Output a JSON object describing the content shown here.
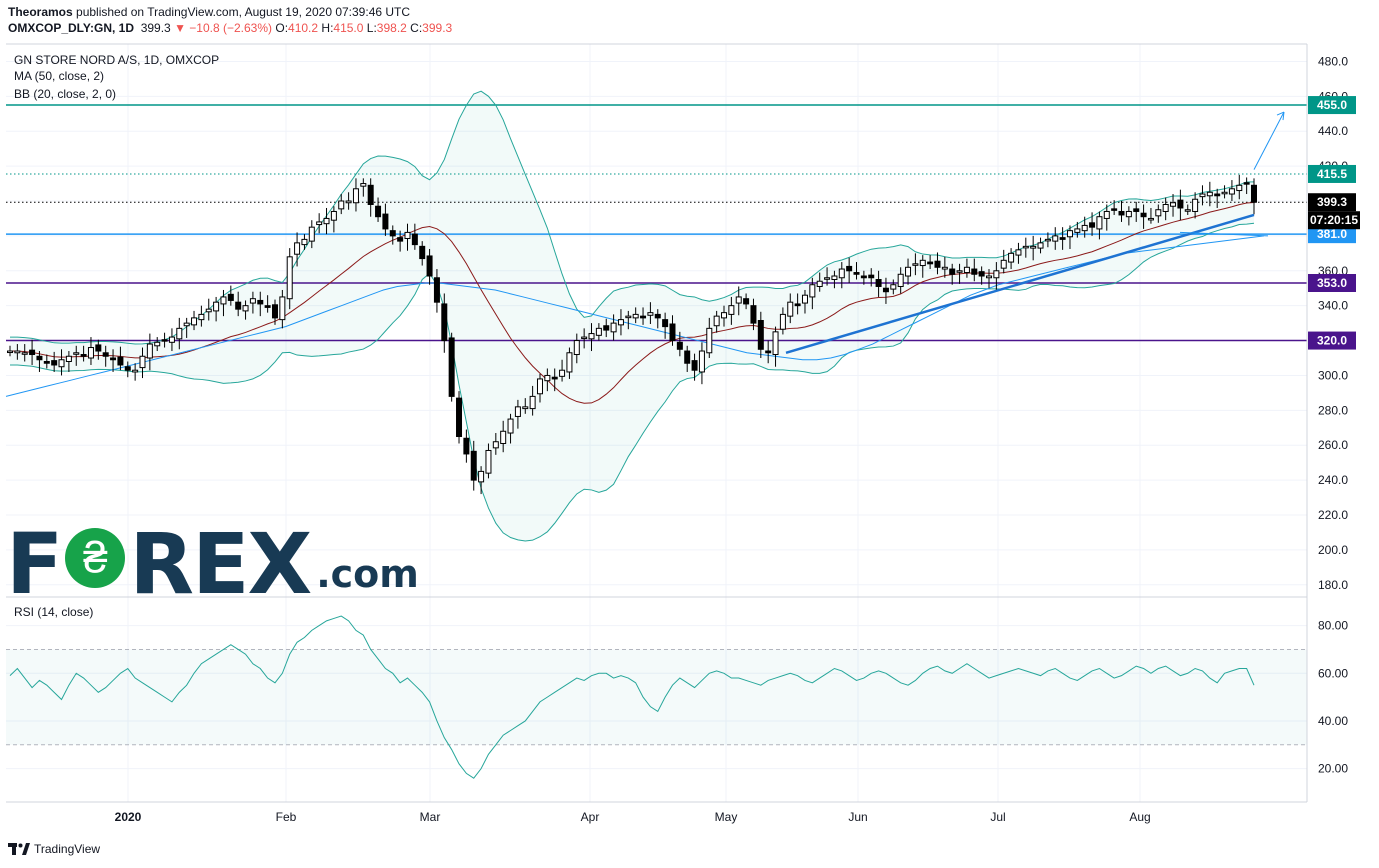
{
  "header": {
    "publisher": "Theoramos",
    "published_text": "published on TradingView.com, August 19, 2020 07:39:46 UTC",
    "symbol": "OMXCOP_DLY:GN, 1D",
    "last": "399.3",
    "change": "▼ −10.8 (−2.63%)",
    "o_label": "O:",
    "o": "410.2",
    "h_label": "H:",
    "h": "415.0",
    "l_label": "L:",
    "l": "398.2",
    "c_label": "C:",
    "c": "399.3"
  },
  "indicators": {
    "title": "GN STORE NORD A/S, 1D, OMXCOP",
    "ma": "MA (50, close, 2)",
    "bb": "BB (20, close, 2, 0)",
    "rsi": "RSI (14, close)"
  },
  "logo": {
    "pre": "F",
    "o": "₴",
    "post": "REX",
    "suffix": ".com"
  },
  "footer": {
    "brand": "TradingView"
  },
  "colors": {
    "up": "#ffffff",
    "down": "#000000",
    "bb": "#26a69a",
    "ma50": "#2196f3",
    "bb_basis": "#8b1a1a",
    "green_level": "#009688",
    "blue_level": "#2196f3",
    "purple_level": "#4a148c",
    "rsi": "#26a69a"
  },
  "chart_data": {
    "type": "candlestick",
    "price_axis": {
      "ticks": [
        "480.0",
        "460.0",
        "440.0",
        "420.0",
        "400.0",
        "380.0",
        "360.0",
        "340.0",
        "320.0",
        "300.0",
        "280.0",
        "260.0",
        "240.0",
        "220.0",
        "200.0",
        "180.0"
      ]
    },
    "rsi_axis": {
      "ticks": [
        "80.00",
        "60.00",
        "40.00",
        "20.00"
      ],
      "band_upper": 70,
      "band_lower": 30
    },
    "time_axis": [
      "2020",
      "Feb",
      "Mar",
      "Apr",
      "May",
      "Jun",
      "Jul",
      "Aug"
    ],
    "levels": [
      {
        "label": "455.0",
        "value": 455.0,
        "style": "solid",
        "color": "#009688"
      },
      {
        "label": "415.5",
        "value": 415.5,
        "style": "dotted",
        "color": "#009688"
      },
      {
        "label": "399.3",
        "value": 399.3,
        "style": "dotted",
        "color": "#000000"
      },
      {
        "label": "381.0",
        "value": 381.0,
        "style": "solid",
        "color": "#2196f3"
      },
      {
        "label": "353.0",
        "value": 353.0,
        "style": "solid",
        "color": "#4a148c"
      },
      {
        "label": "320.0",
        "value": 320.0,
        "style": "solid",
        "color": "#4a148c"
      }
    ],
    "countdown": "07:20:15",
    "close_series": [
      314,
      314,
      313,
      312,
      309,
      307,
      306,
      309,
      311,
      313,
      311,
      316,
      314,
      311,
      309,
      306,
      303,
      303,
      311,
      318,
      319,
      320,
      322,
      327,
      330,
      333,
      335,
      338,
      342,
      345,
      343,
      338,
      340,
      344,
      341,
      339,
      333,
      345,
      368,
      376,
      378,
      385,
      388,
      390,
      394,
      400,
      400,
      407,
      410,
      398,
      391,
      384,
      380,
      377,
      382,
      375,
      367,
      357,
      342,
      320,
      288,
      265,
      255,
      240,
      245,
      257,
      262,
      268,
      275,
      282,
      282,
      288,
      298,
      300,
      298,
      303,
      313,
      320,
      322,
      324,
      327,
      326,
      330,
      332,
      334,
      335,
      333,
      336,
      333,
      328,
      320,
      315,
      307,
      303,
      314,
      327,
      334,
      336,
      340,
      345,
      341,
      330,
      315,
      313,
      325,
      335,
      342,
      340,
      346,
      352,
      354,
      356,
      357,
      361,
      360,
      358,
      356,
      356,
      351,
      348,
      352,
      358,
      362,
      364,
      366,
      364,
      362,
      362,
      358,
      360,
      362,
      358,
      357,
      357,
      360,
      366,
      370,
      372,
      374,
      374,
      376,
      378,
      380,
      378,
      383,
      384,
      386,
      385,
      391,
      394,
      395,
      392,
      394,
      394,
      391,
      390,
      395,
      398,
      399,
      396,
      395,
      401,
      404,
      405,
      403,
      405,
      407,
      409,
      410,
      399.3
    ],
    "ma50": [
      288,
      290,
      292,
      294,
      296,
      298,
      300,
      302,
      304,
      306,
      308,
      310,
      312,
      314,
      316,
      318,
      320,
      322,
      324,
      326,
      328,
      331,
      334,
      337,
      340,
      343,
      346,
      349,
      351,
      352,
      353,
      353,
      352,
      351,
      350,
      349,
      347,
      345,
      343,
      341,
      339,
      337,
      335,
      333,
      331,
      329,
      327,
      325,
      323,
      321,
      319,
      317,
      315,
      313,
      312,
      311,
      310,
      309,
      309,
      310,
      312,
      315,
      318,
      322,
      326,
      330,
      334,
      338,
      342,
      346,
      349,
      352,
      354,
      356,
      358,
      360,
      362,
      364,
      366,
      368,
      370,
      371,
      372,
      373,
      374,
      375,
      376,
      377,
      378,
      379,
      380
    ],
    "rsi_series": [
      59,
      62,
      58,
      54,
      57,
      55,
      52,
      49,
      55,
      60,
      58,
      55,
      52,
      54,
      57,
      60,
      62,
      58,
      56,
      54,
      52,
      50,
      48,
      52,
      55,
      60,
      64,
      66,
      68,
      70,
      72,
      70,
      68,
      64,
      62,
      58,
      56,
      60,
      68,
      73,
      75,
      78,
      80,
      82,
      83,
      84,
      82,
      78,
      76,
      70,
      66,
      62,
      60,
      56,
      58,
      55,
      52,
      48,
      40,
      33,
      28,
      22,
      18,
      16,
      20,
      26,
      30,
      34,
      36,
      38,
      40,
      44,
      48,
      50,
      52,
      54,
      56,
      58,
      57,
      59,
      60,
      60,
      58,
      59,
      58,
      56,
      50,
      46,
      44,
      50,
      55,
      58,
      56,
      54,
      57,
      60,
      61,
      60,
      58,
      58,
      57,
      56,
      55,
      57,
      58,
      59,
      60,
      59,
      57,
      56,
      58,
      60,
      62,
      61,
      59,
      57,
      58,
      60,
      61,
      60,
      58,
      56,
      55,
      57,
      60,
      62,
      63,
      61,
      60,
      62,
      64,
      62,
      60,
      58,
      59,
      60,
      61,
      62,
      61,
      60,
      59,
      61,
      62,
      60,
      58,
      57,
      59,
      61,
      62,
      60,
      58,
      59,
      61,
      63,
      62,
      60,
      62,
      63,
      61,
      59,
      60,
      62,
      61,
      58,
      56,
      60,
      61,
      62,
      62,
      55
    ]
  }
}
